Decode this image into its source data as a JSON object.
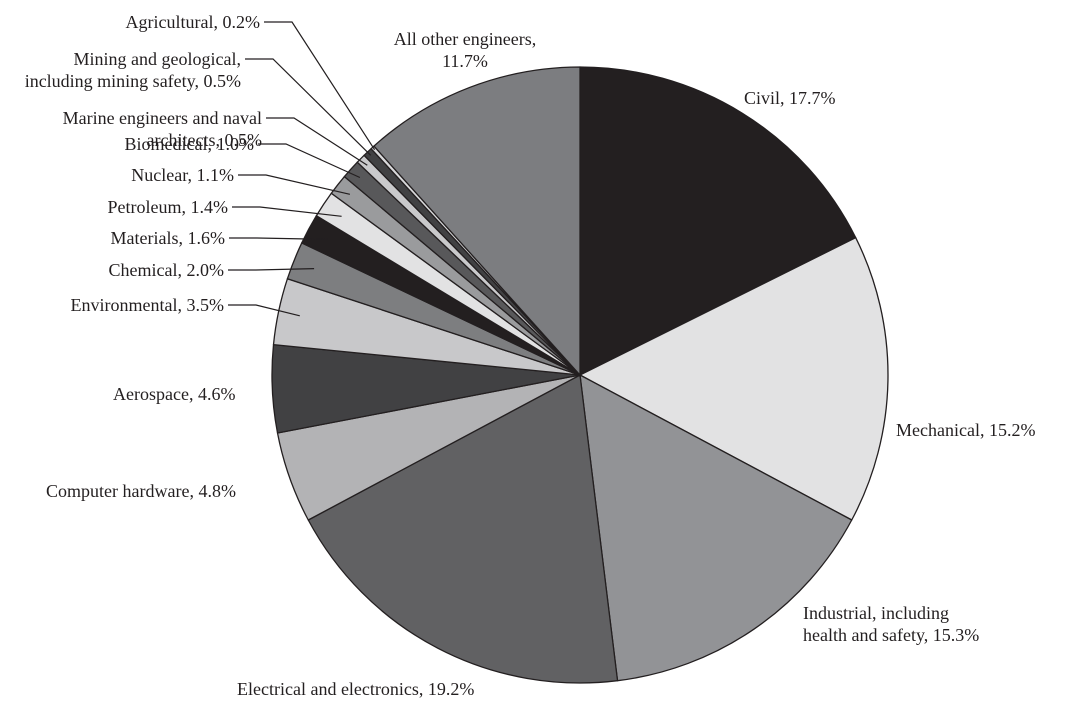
{
  "chart_data": {
    "type": "pie",
    "unit": "%",
    "start": "top, clockwise",
    "slices": [
      {
        "label": "Civil",
        "value": 17.7,
        "color": "#231f20",
        "text": [
          "Civil, 17.7%"
        ]
      },
      {
        "label": "Mechanical",
        "value": 15.2,
        "color": "#e2e2e3",
        "text": [
          "Mechanical, 15.2%"
        ]
      },
      {
        "label": "Industrial, including health and safety",
        "value": 15.3,
        "color": "#929396",
        "text": [
          "Industrial, including",
          "health and safety, 15.3%"
        ]
      },
      {
        "label": "Electrical and electronics",
        "value": 19.2,
        "color": "#616163",
        "text": [
          "Electrical and electronics, 19.2%"
        ]
      },
      {
        "label": "Computer hardware",
        "value": 4.8,
        "color": "#b3b3b5",
        "text": [
          "Computer hardware, 4.8%"
        ]
      },
      {
        "label": "Aerospace",
        "value": 4.6,
        "color": "#414143",
        "text": [
          "Aerospace, 4.6%"
        ]
      },
      {
        "label": "Environmental",
        "value": 3.5,
        "color": "#c8c8ca",
        "text": [
          "Environmental, 3.5%"
        ]
      },
      {
        "label": "Chemical",
        "value": 2.0,
        "color": "#7d7e80",
        "text": [
          "Chemical, 2.0%"
        ]
      },
      {
        "label": "Materials",
        "value": 1.6,
        "color": "#231f20",
        "text": [
          "Materials, 1.6%"
        ]
      },
      {
        "label": "Petroleum",
        "value": 1.4,
        "color": "#e2e2e3",
        "text": [
          "Petroleum, 1.4%"
        ]
      },
      {
        "label": "Nuclear",
        "value": 1.1,
        "color": "#9a9b9d",
        "text": [
          "Nuclear, 1.1%"
        ]
      },
      {
        "label": "Biomedical",
        "value": 1.0,
        "color": "#58585a",
        "text": [
          "Biomedical, 1.0%"
        ]
      },
      {
        "label": "Marine engineers and naval architects",
        "value": 0.5,
        "color": "#c9c9cb",
        "text": [
          "Marine engineers and naval",
          "architects, 0.5%"
        ]
      },
      {
        "label": "Mining and geological, including mining safety",
        "value": 0.5,
        "color": "#414143",
        "text": [
          "Mining and geological,",
          "including mining safety, 0.5%"
        ]
      },
      {
        "label": "Agricultural",
        "value": 0.2,
        "color": "#d9d9db",
        "text": [
          "Agricultural, 0.2%"
        ]
      },
      {
        "label": "All other engineers",
        "value": 11.7,
        "color": "#7c7d80",
        "text": [
          "All other engineers,",
          "11.7%"
        ]
      }
    ]
  }
}
